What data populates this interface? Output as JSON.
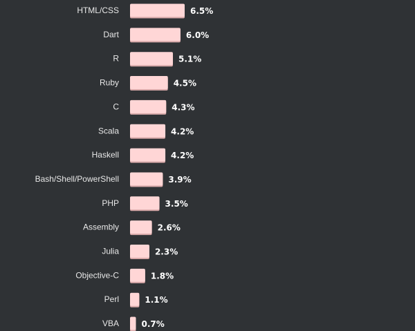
{
  "chart_data": {
    "type": "bar",
    "orientation": "horizontal",
    "categories": [
      "HTML/CSS",
      "Dart",
      "R",
      "Ruby",
      "C",
      "Scala",
      "Haskell",
      "Bash/Shell/PowerShell",
      "PHP",
      "Assembly",
      "Julia",
      "Objective-C",
      "Perl",
      "VBA"
    ],
    "values": [
      6.5,
      6.0,
      5.1,
      4.5,
      4.3,
      4.2,
      4.2,
      3.9,
      3.5,
      2.6,
      2.3,
      1.8,
      1.1,
      0.7
    ],
    "value_labels": [
      "6.5%",
      "6.0%",
      "5.1%",
      "4.5%",
      "4.3%",
      "4.2%",
      "4.2%",
      "3.9%",
      "3.5%",
      "2.6%",
      "2.3%",
      "1.8%",
      "1.1%",
      "0.7%"
    ],
    "bar_color": "#ffd6d6",
    "bar_shadow_color": "#d9aaaa",
    "background_color": "#2f3235",
    "label_color": "#e8e8e8",
    "value_label_color": "#ffffff",
    "xlim": [
      0,
      6.5
    ],
    "grid": false,
    "legend": "none"
  }
}
